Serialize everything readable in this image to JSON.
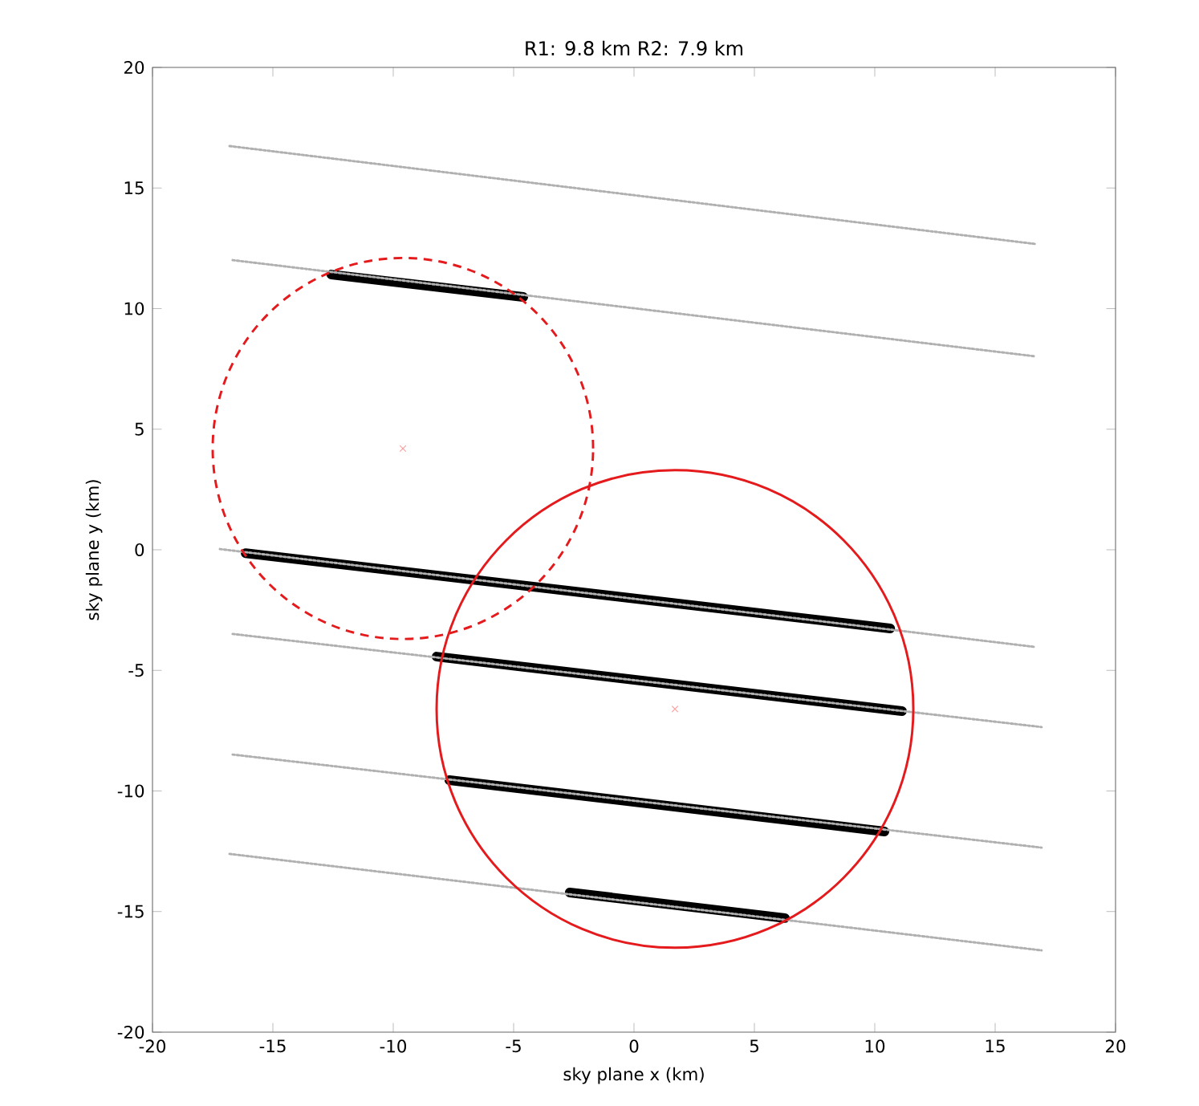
{
  "chart_data": {
    "type": "line",
    "title": "R1: 9.8 km   R2: 7.9 km",
    "xlabel": "sky plane x (km)",
    "ylabel": "sky plane y (km)",
    "xlim": [
      -20,
      20
    ],
    "ylim": [
      -20,
      20
    ],
    "xticks": [
      -20,
      -15,
      -10,
      -5,
      0,
      5,
      10,
      15,
      20
    ],
    "yticks": [
      -20,
      -15,
      -10,
      -5,
      0,
      5,
      10,
      15,
      20
    ],
    "series": [
      {
        "type": "line",
        "color": "#000000",
        "line_style": "solid",
        "x": [
          -12.57,
          -4.6
        ],
        "values": [
          11.41,
          10.48
        ]
      },
      {
        "type": "line",
        "color": "#000000",
        "line_style": "solid",
        "x": [
          -16.13,
          10.64
        ],
        "values": [
          -0.14,
          -3.26
        ]
      },
      {
        "type": "line",
        "color": "#000000",
        "line_style": "solid",
        "x": [
          -8.2,
          11.13
        ],
        "values": [
          -4.43,
          -6.69
        ]
      },
      {
        "type": "line",
        "color": "#000000",
        "line_style": "solid",
        "x": [
          -7.67,
          10.4
        ],
        "values": [
          -9.55,
          -11.68
        ]
      },
      {
        "type": "line",
        "color": "#000000",
        "line_style": "solid",
        "x": [
          -2.67,
          6.27
        ],
        "values": [
          -14.21,
          -15.27
        ]
      },
      {
        "type": "line",
        "color": "#b0b0b0",
        "line_style": "dotted",
        "x": [
          -16.8,
          16.67
        ],
        "values": [
          16.74,
          12.68
        ]
      },
      {
        "type": "line",
        "color": "#b0b0b0",
        "line_style": "dotted",
        "x": [
          -16.67,
          16.67
        ],
        "values": [
          12.01,
          8.02
        ]
      },
      {
        "type": "line",
        "color": "#b0b0b0",
        "line_style": "dotted",
        "x": [
          -17.2,
          16.67
        ],
        "values": [
          0.03,
          -4.03
        ]
      },
      {
        "type": "line",
        "color": "#b0b0b0",
        "line_style": "dotted",
        "x": [
          -16.67,
          16.93
        ],
        "values": [
          -3.49,
          -7.35
        ]
      },
      {
        "type": "line",
        "color": "#b0b0b0",
        "line_style": "dotted",
        "x": [
          -16.67,
          16.93
        ],
        "values": [
          -8.49,
          -12.35
        ]
      },
      {
        "type": "line",
        "color": "#b0b0b0",
        "line_style": "dotted",
        "x": [
          -16.8,
          16.93
        ],
        "values": [
          -12.61,
          -16.61
        ]
      },
      {
        "type": "scatter",
        "color": "#ff9999",
        "marker": "cross",
        "x": [
          -9.6,
          1.7
        ],
        "values": [
          4.2,
          -6.6
        ]
      }
    ]
  }
}
